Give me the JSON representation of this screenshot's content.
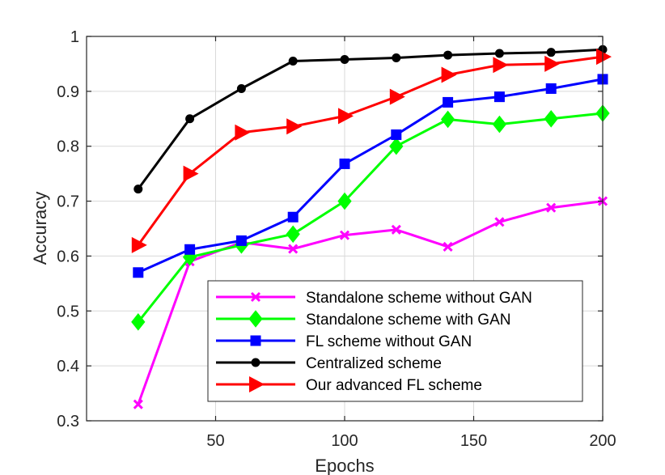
{
  "chart_data": {
    "type": "line",
    "title": "",
    "xlabel": "Epochs",
    "ylabel": "Accuracy",
    "xlim": [
      0,
      200
    ],
    "ylim": [
      0.3,
      1.0
    ],
    "xticks": [
      50,
      100,
      150,
      200
    ],
    "xtick_labels": [
      "50",
      "100",
      "150",
      "200"
    ],
    "yticks": [
      0.3,
      0.4,
      0.5,
      0.6,
      0.7,
      0.8,
      0.9,
      1.0
    ],
    "ytick_labels": [
      "0.3",
      "0.4",
      "0.5",
      "0.6",
      "0.7",
      "0.8",
      "0.9",
      "1"
    ],
    "grid": true,
    "legend_position": "bottom-right",
    "x": [
      20,
      40,
      60,
      80,
      100,
      120,
      140,
      160,
      180,
      200
    ],
    "series": [
      {
        "name": "Standalone scheme without GAN",
        "color": "#ff00ff",
        "marker": "x",
        "values": [
          0.33,
          0.59,
          0.625,
          0.613,
          0.638,
          0.648,
          0.617,
          0.662,
          0.688,
          0.7
        ]
      },
      {
        "name": "Standalone scheme with GAN",
        "color": "#00ff00",
        "marker": "diamond",
        "values": [
          0.48,
          0.598,
          0.62,
          0.64,
          0.7,
          0.8,
          0.849,
          0.84,
          0.85,
          0.86
        ]
      },
      {
        "name": "FL scheme without GAN",
        "color": "#0000ff",
        "marker": "square",
        "values": [
          0.57,
          0.612,
          0.628,
          0.671,
          0.768,
          0.821,
          0.88,
          0.89,
          0.905,
          0.922
        ]
      },
      {
        "name": "Centralized scheme",
        "color": "#000000",
        "marker": "circle",
        "values": [
          0.722,
          0.85,
          0.905,
          0.955,
          0.958,
          0.961,
          0.966,
          0.969,
          0.971,
          0.976
        ]
      },
      {
        "name": "Our advanced FL scheme",
        "color": "#ff0000",
        "marker": "triangle-right",
        "values": [
          0.62,
          0.75,
          0.825,
          0.836,
          0.855,
          0.89,
          0.93,
          0.948,
          0.95,
          0.963
        ]
      }
    ]
  }
}
